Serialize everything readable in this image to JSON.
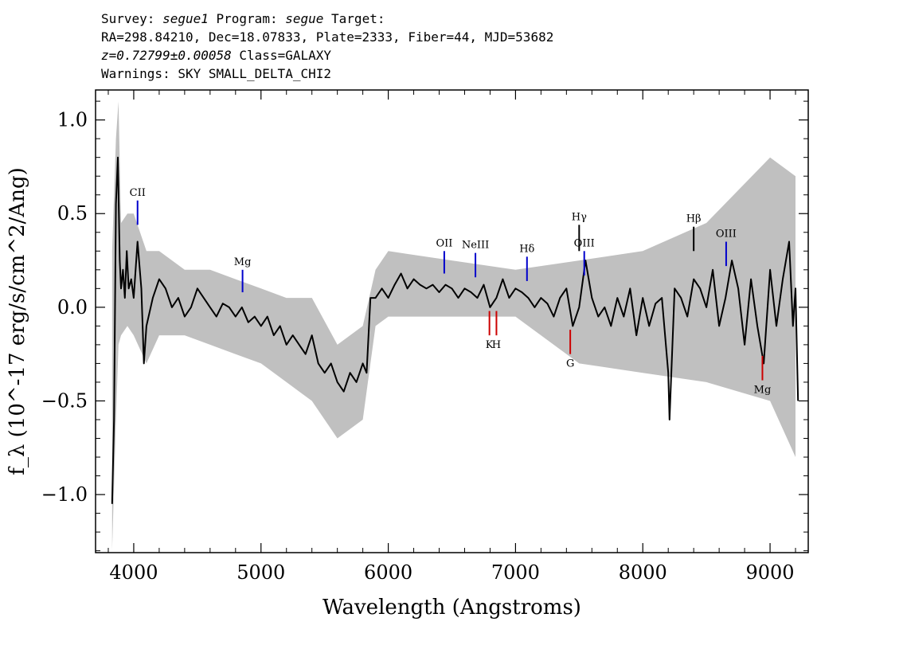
{
  "header": {
    "survey_label": "Survey:",
    "survey_value": "segue1",
    "program_label": "Program:",
    "program_value": "segue",
    "target_label": "Target:",
    "coords_line": "RA=298.84210, Dec=18.07833, Plate=2333, Fiber=44, MJD=53682",
    "redshift": "z=0.72799±0.00058",
    "class_text": "Class=GALAXY",
    "warnings": "Warnings: SKY SMALL_DELTA_CHI2"
  },
  "chart_data": {
    "type": "line",
    "xlabel": "Wavelength (Angstroms)",
    "ylabel": "f_λ (10^-17 erg/s/cm^2/Ang)",
    "xlim": [
      3700,
      9300
    ],
    "ylim": [
      -1.31,
      1.16
    ],
    "x_ticks": [
      4000,
      5000,
      6000,
      7000,
      8000,
      9000
    ],
    "y_ticks": [
      -1.0,
      -0.5,
      0.0,
      0.5,
      1.0
    ],
    "y_tick_labels": [
      "−1.0",
      "−0.5",
      "0.0",
      "0.5",
      "1.0"
    ],
    "grid": false,
    "series": [
      {
        "role": "flux",
        "color": "#000000",
        "x": [
          3830,
          3845,
          3860,
          3875,
          3890,
          3900,
          3915,
          3930,
          3945,
          3960,
          3980,
          4000,
          4030,
          4060,
          4080,
          4100,
          4150,
          4200,
          4250,
          4300,
          4350,
          4400,
          4450,
          4500,
          4550,
          4600,
          4650,
          4700,
          4750,
          4800,
          4850,
          4900,
          4950,
          5000,
          5050,
          5100,
          5150,
          5200,
          5250,
          5300,
          5350,
          5400,
          5450,
          5500,
          5550,
          5600,
          5650,
          5700,
          5750,
          5800,
          5830,
          5860,
          5900,
          5950,
          6000,
          6050,
          6100,
          6150,
          6200,
          6250,
          6300,
          6350,
          6400,
          6450,
          6500,
          6550,
          6600,
          6650,
          6700,
          6750,
          6800,
          6850,
          6900,
          6950,
          7000,
          7050,
          7100,
          7150,
          7200,
          7250,
          7300,
          7350,
          7400,
          7450,
          7500,
          7550,
          7600,
          7650,
          7700,
          7750,
          7800,
          7850,
          7900,
          7950,
          8000,
          8050,
          8100,
          8150,
          8200,
          8210,
          8250,
          8300,
          8350,
          8400,
          8450,
          8500,
          8550,
          8600,
          8650,
          8700,
          8750,
          8800,
          8850,
          8900,
          8950,
          9000,
          9050,
          9100,
          9150,
          9180,
          9200,
          9220
        ],
        "y": [
          -1.05,
          -0.6,
          0.55,
          0.8,
          0.25,
          0.1,
          0.2,
          0.05,
          0.3,
          0.1,
          0.15,
          0.05,
          0.35,
          0.1,
          -0.3,
          -0.1,
          0.05,
          0.15,
          0.1,
          0.0,
          0.05,
          -0.05,
          0.0,
          0.1,
          0.05,
          0.0,
          -0.05,
          0.02,
          0.0,
          -0.05,
          0.0,
          -0.08,
          -0.05,
          -0.1,
          -0.05,
          -0.15,
          -0.1,
          -0.2,
          -0.15,
          -0.2,
          -0.25,
          -0.15,
          -0.3,
          -0.35,
          -0.3,
          -0.4,
          -0.45,
          -0.35,
          -0.4,
          -0.3,
          -0.35,
          0.05,
          0.05,
          0.1,
          0.05,
          0.12,
          0.18,
          0.1,
          0.15,
          0.12,
          0.1,
          0.12,
          0.08,
          0.12,
          0.1,
          0.05,
          0.1,
          0.08,
          0.05,
          0.12,
          0.0,
          0.05,
          0.15,
          0.05,
          0.1,
          0.08,
          0.05,
          0.0,
          0.05,
          0.02,
          -0.05,
          0.05,
          0.1,
          -0.1,
          0.0,
          0.25,
          0.05,
          -0.05,
          0.0,
          -0.1,
          0.05,
          -0.05,
          0.1,
          -0.15,
          0.05,
          -0.1,
          0.02,
          0.05,
          -0.35,
          -0.6,
          0.1,
          0.05,
          -0.05,
          0.15,
          0.1,
          0.0,
          0.2,
          -0.1,
          0.05,
          0.25,
          0.1,
          -0.2,
          0.15,
          -0.1,
          -0.3,
          0.2,
          -0.1,
          0.15,
          0.35,
          -0.1,
          0.1,
          -0.5
        ]
      },
      {
        "role": "flux-uncertainty",
        "color": "#c0c0c0",
        "x": [
          3830,
          3860,
          3880,
          3900,
          3950,
          4000,
          4100,
          4200,
          4400,
          4600,
          4800,
          5000,
          5200,
          5400,
          5600,
          5800,
          5900,
          6000,
          6500,
          7000,
          7500,
          8000,
          8500,
          9000,
          9200
        ],
        "upper": [
          0.3,
          0.9,
          1.1,
          0.45,
          0.5,
          0.5,
          0.3,
          0.3,
          0.2,
          0.2,
          0.15,
          0.1,
          0.05,
          0.05,
          -0.2,
          -0.1,
          0.2,
          0.3,
          0.25,
          0.2,
          0.25,
          0.3,
          0.45,
          0.8,
          0.7
        ],
        "lower": [
          -1.3,
          -0.6,
          -0.2,
          -0.15,
          -0.1,
          -0.15,
          -0.3,
          -0.15,
          -0.15,
          -0.2,
          -0.25,
          -0.3,
          -0.4,
          -0.5,
          -0.7,
          -0.6,
          -0.1,
          -0.05,
          -0.05,
          -0.05,
          -0.3,
          -0.35,
          -0.4,
          -0.5,
          -0.8
        ]
      }
    ],
    "emission_lines": [
      {
        "label": "CII",
        "x": 4030,
        "y_top": 0.57,
        "y_bottom": 0.44,
        "color": "#0000cc"
      },
      {
        "label": "Mg",
        "x": 4855,
        "y_top": 0.2,
        "y_bottom": 0.08,
        "color": "#0000cc"
      },
      {
        "label": "OII",
        "x": 6440,
        "y_top": 0.3,
        "y_bottom": 0.18,
        "color": "#0000cc"
      },
      {
        "label": "NeIII",
        "x": 6685,
        "y_top": 0.29,
        "y_bottom": 0.16,
        "color": "#0000cc"
      },
      {
        "label": "Hδ",
        "x": 7090,
        "y_top": 0.27,
        "y_bottom": 0.14,
        "color": "#0000cc"
      },
      {
        "label": "Hγ",
        "x": 7500,
        "y_top": 0.44,
        "y_bottom": 0.3,
        "color": "#000000"
      },
      {
        "label": "OIII",
        "x": 7540,
        "y_top": 0.3,
        "y_bottom": 0.17,
        "color": "#0000cc"
      },
      {
        "label": "Hβ",
        "x": 8400,
        "y_top": 0.43,
        "y_bottom": 0.3,
        "color": "#000000"
      },
      {
        "label": "OIII",
        "x": 8655,
        "y_top": 0.35,
        "y_bottom": 0.22,
        "color": "#0000cc"
      }
    ],
    "absorption_lines": [
      {
        "label": "K",
        "x": 6795,
        "y_top": -0.02,
        "y_bottom": -0.15,
        "color": "#cc0000"
      },
      {
        "label": "H",
        "x": 6850,
        "y_top": -0.02,
        "y_bottom": -0.15,
        "color": "#cc0000"
      },
      {
        "label": "G",
        "x": 7430,
        "y_top": -0.12,
        "y_bottom": -0.25,
        "color": "#cc0000"
      },
      {
        "label": "Mg",
        "x": 8940,
        "y_top": -0.26,
        "y_bottom": -0.39,
        "color": "#cc0000"
      }
    ]
  }
}
